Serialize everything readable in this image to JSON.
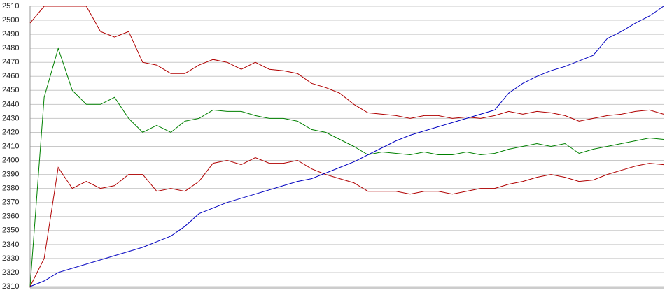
{
  "chart_data": {
    "type": "line",
    "ylim": [
      2310,
      2510
    ],
    "yticks": [
      2310,
      2320,
      2330,
      2340,
      2350,
      2360,
      2370,
      2380,
      2390,
      2400,
      2410,
      2420,
      2430,
      2440,
      2450,
      2460,
      2470,
      2480,
      2490,
      2500,
      2510
    ],
    "grid": true,
    "series": [
      {
        "color": "#b00000",
        "values": [
          2498,
          2510,
          2510,
          2510,
          2510,
          2492,
          2488,
          2492,
          2470,
          2468,
          2462,
          2462,
          2468,
          2472,
          2470,
          2465,
          2470,
          2465,
          2464,
          2462,
          2455,
          2452,
          2448,
          2440,
          2434,
          2433,
          2432,
          2430,
          2432,
          2432,
          2430,
          2431,
          2430,
          2432,
          2435,
          2433,
          2435,
          2434,
          2432,
          2428,
          2430,
          2432,
          2433,
          2435,
          2436,
          2433
        ]
      },
      {
        "color": "#008000",
        "values": [
          2310,
          2445,
          2480,
          2450,
          2440,
          2440,
          2445,
          2430,
          2420,
          2425,
          2420,
          2428,
          2430,
          2436,
          2435,
          2435,
          2432,
          2430,
          2430,
          2428,
          2422,
          2420,
          2415,
          2410,
          2404,
          2406,
          2405,
          2404,
          2406,
          2404,
          2404,
          2406,
          2404,
          2405,
          2408,
          2410,
          2412,
          2410,
          2412,
          2405,
          2408,
          2410,
          2412,
          2414,
          2416,
          2415
        ]
      },
      {
        "color": "#b00000",
        "values": [
          2310,
          2330,
          2395,
          2380,
          2385,
          2380,
          2382,
          2390,
          2390,
          2378,
          2380,
          2378,
          2385,
          2398,
          2400,
          2397,
          2402,
          2398,
          2398,
          2400,
          2394,
          2390,
          2387,
          2384,
          2378,
          2378,
          2378,
          2376,
          2378,
          2378,
          2376,
          2378,
          2380,
          2380,
          2383,
          2385,
          2388,
          2390,
          2388,
          2385,
          2386,
          2390,
          2393,
          2396,
          2398,
          2397
        ]
      },
      {
        "color": "#0000c0",
        "values": [
          2310,
          2314,
          2320,
          2323,
          2326,
          2329,
          2332,
          2335,
          2338,
          2342,
          2346,
          2353,
          2362,
          2366,
          2370,
          2373,
          2376,
          2379,
          2382,
          2385,
          2387,
          2391,
          2395,
          2399,
          2404,
          2409,
          2414,
          2418,
          2421,
          2424,
          2427,
          2430,
          2433,
          2436,
          2448,
          2455,
          2460,
          2464,
          2467,
          2471,
          2475,
          2487,
          2492,
          2498,
          2503,
          2510
        ]
      }
    ]
  }
}
